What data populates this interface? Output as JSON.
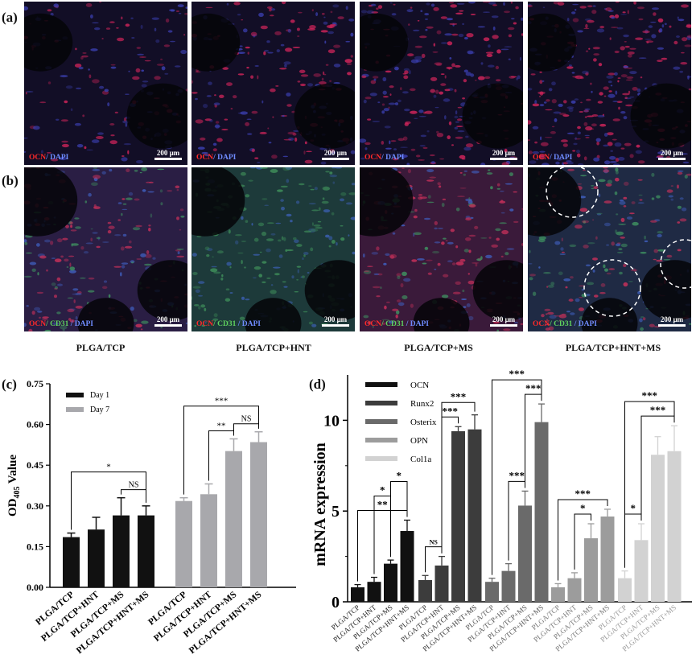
{
  "panels": {
    "a": "(a)",
    "b": "(b)",
    "c": "(c)",
    "d": "(d)"
  },
  "micrographs": {
    "groups": [
      "PLGA/TCP",
      "PLGA/TCP+HNT",
      "PLGA/TCP+MS",
      "PLGA/TCP+HNT+MS"
    ],
    "scale_bar": "200 μm",
    "row_a": {
      "ocn": "OCN",
      "dapi": "/ DAPI"
    },
    "row_b": {
      "ocn": "OCN",
      "cd31": "/ CD31",
      "dapi": " / DAPI"
    }
  },
  "chart_data": [
    {
      "type": "bar",
      "panel": "(c)",
      "ylabel": "OD405 Value",
      "ylim": [
        0,
        0.75
      ],
      "yticks": [
        "0.00",
        "0.15",
        "0.30",
        "0.45",
        "0.60",
        "0.75"
      ],
      "categories": [
        "PLGA/TCP",
        "PLGA/TCP+HNT",
        "PLGA/TCP+MS",
        "PLGA/TCP+HNT+MS"
      ],
      "series": [
        {
          "name": "Day 1",
          "color": "#111111",
          "values": [
            0.185,
            0.213,
            0.265,
            0.265
          ],
          "errors": [
            0.015,
            0.045,
            0.065,
            0.035
          ]
        },
        {
          "name": "Day 7",
          "color": "#a8a8ac",
          "values": [
            0.318,
            0.343,
            0.502,
            0.535
          ],
          "errors": [
            0.012,
            0.038,
            0.045,
            0.038
          ]
        }
      ],
      "significance": [
        {
          "series": 0,
          "from": 0,
          "to": 3,
          "label": "*"
        },
        {
          "series": 0,
          "from": 2,
          "to": 3,
          "label": "NS"
        },
        {
          "series": 1,
          "from": 0,
          "to": 3,
          "label": "***"
        },
        {
          "series": 1,
          "from": 1,
          "to": 2,
          "label": "**"
        },
        {
          "series": 1,
          "from": 2,
          "to": 3,
          "label": "NS"
        }
      ]
    },
    {
      "type": "bar",
      "panel": "(d)",
      "ylabel": "mRNA expression",
      "ylim": [
        0,
        12.5
      ],
      "yticks": [
        "0",
        "5",
        "10"
      ],
      "categories": [
        "PLGA/TCP",
        "PLGA/TCP+HNT",
        "PLGA/TCP+MS",
        "PLGA/TCP+HNT+MS"
      ],
      "series": [
        {
          "name": "OCN",
          "color": "#111111",
          "values": [
            0.8,
            1.1,
            2.1,
            3.9
          ],
          "errors": [
            0.15,
            0.25,
            0.2,
            0.6
          ]
        },
        {
          "name": "Runx2",
          "color": "#3c3c3c",
          "values": [
            1.2,
            2.0,
            9.4,
            9.5
          ],
          "errors": [
            0.25,
            0.5,
            0.25,
            0.8
          ]
        },
        {
          "name": "Osterix",
          "color": "#6a6a6a",
          "values": [
            1.1,
            1.7,
            5.3,
            9.9
          ],
          "errors": [
            0.2,
            0.4,
            0.8,
            1.0
          ]
        },
        {
          "name": "OPN",
          "color": "#9c9c9c",
          "values": [
            0.8,
            1.3,
            3.5,
            4.7
          ],
          "errors": [
            0.2,
            0.3,
            0.8,
            0.4
          ]
        },
        {
          "name": "Col1a",
          "color": "#d2d2d2",
          "values": [
            1.3,
            3.4,
            8.1,
            8.3
          ],
          "errors": [
            0.4,
            0.9,
            1.0,
            1.4
          ]
        }
      ],
      "significance": [
        {
          "series": 0,
          "from": 0,
          "to": 3,
          "label": "**"
        },
        {
          "series": 0,
          "from": 1,
          "to": 2,
          "label": "*"
        },
        {
          "series": 0,
          "from": 2,
          "to": 3,
          "label": "*"
        },
        {
          "series": 1,
          "from": 0,
          "to": 1,
          "label": "NS"
        },
        {
          "series": 1,
          "from": 1,
          "to": 2,
          "label": "***"
        },
        {
          "series": 1,
          "from": 1,
          "to": 3,
          "label": "***"
        },
        {
          "series": 2,
          "from": 1,
          "to": 2,
          "label": "***"
        },
        {
          "series": 2,
          "from": 2,
          "to": 3,
          "label": "***"
        },
        {
          "series": 2,
          "from": 0,
          "to": 3,
          "label": "***"
        },
        {
          "series": 3,
          "from": 1,
          "to": 2,
          "label": "*"
        },
        {
          "series": 3,
          "from": 0,
          "to": 3,
          "label": "***"
        },
        {
          "series": 4,
          "from": 0,
          "to": 1,
          "label": "*"
        },
        {
          "series": 4,
          "from": 1,
          "to": 3,
          "label": "***"
        },
        {
          "series": 4,
          "from": 0,
          "to": 3,
          "label": "***"
        }
      ]
    }
  ]
}
